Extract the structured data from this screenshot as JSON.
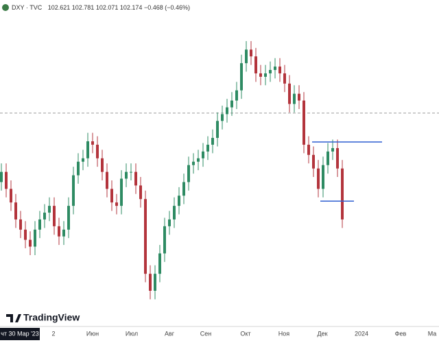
{
  "chart_data": {
    "type": "candlestick",
    "symbol": "DXY",
    "separator": "·",
    "source": "TVC",
    "open": 102.621,
    "high": 102.781,
    "low": 102.071,
    "close": 102.174,
    "change": "−0.468",
    "change_pct": "(−0.46%)",
    "brand": "TradingView",
    "up_color": "#2e8b63",
    "down_color": "#b3343c",
    "ylim": [
      98.87,
      108.36
    ],
    "levels": [
      {
        "value": 104.18,
        "color": "#2f5fd0"
      },
      {
        "value": 102.44,
        "color": "#2f5fd0"
      }
    ],
    "crosshair_price": 105.03,
    "crosshair_date": "чт 30 Мар '23",
    "x_labels": [
      "2",
      "Июн",
      "Июл",
      "Авг",
      "Сен",
      "Окт",
      "Ноя",
      "Дек",
      "2024",
      "Фев",
      "Ма"
    ],
    "candles": [
      [
        103.0,
        103.55,
        102.75,
        103.3
      ],
      [
        103.3,
        103.55,
        102.55,
        102.8
      ],
      [
        102.8,
        103.05,
        102.15,
        102.4
      ],
      [
        102.4,
        102.65,
        101.65,
        101.9
      ],
      [
        101.9,
        102.15,
        101.35,
        101.6
      ],
      [
        101.6,
        101.85,
        101.05,
        101.3
      ],
      [
        101.3,
        101.55,
        100.85,
        101.1
      ],
      [
        101.1,
        101.85,
        100.85,
        101.6
      ],
      [
        101.6,
        102.15,
        101.35,
        101.9
      ],
      [
        101.9,
        102.35,
        101.65,
        102.1
      ],
      [
        102.1,
        102.55,
        101.85,
        102.3
      ],
      [
        102.3,
        102.55,
        101.45,
        101.7
      ],
      [
        101.7,
        101.95,
        101.15,
        101.4
      ],
      [
        101.4,
        101.85,
        101.15,
        101.6
      ],
      [
        101.6,
        102.55,
        101.35,
        102.3
      ],
      [
        102.3,
        103.45,
        102.05,
        103.2
      ],
      [
        103.2,
        103.85,
        102.95,
        103.6
      ],
      [
        103.6,
        103.95,
        103.35,
        103.7
      ],
      [
        103.7,
        104.45,
        103.45,
        104.2
      ],
      [
        104.2,
        104.45,
        103.85,
        104.1
      ],
      [
        104.1,
        104.35,
        103.45,
        103.7
      ],
      [
        103.7,
        103.95,
        103.05,
        103.3
      ],
      [
        103.3,
        103.55,
        102.55,
        102.8
      ],
      [
        102.8,
        103.05,
        102.15,
        102.4
      ],
      [
        102.4,
        102.65,
        102.05,
        102.3
      ],
      [
        102.3,
        103.35,
        102.05,
        103.1
      ],
      [
        103.1,
        103.55,
        102.85,
        103.3
      ],
      [
        103.3,
        103.55,
        103.05,
        103.3
      ],
      [
        103.3,
        103.55,
        102.65,
        102.9
      ],
      [
        102.9,
        103.15,
        102.25,
        102.5
      ],
      [
        102.5,
        102.75,
        100.05,
        100.3
      ],
      [
        100.3,
        100.55,
        99.55,
        99.8
      ],
      [
        99.8,
        100.55,
        99.55,
        100.3
      ],
      [
        100.3,
        101.15,
        100.05,
        100.9
      ],
      [
        100.9,
        101.95,
        100.65,
        101.7
      ],
      [
        101.7,
        102.15,
        101.45,
        101.9
      ],
      [
        101.9,
        102.55,
        101.65,
        102.3
      ],
      [
        102.3,
        102.85,
        102.05,
        102.6
      ],
      [
        102.6,
        103.25,
        102.35,
        103.0
      ],
      [
        103.0,
        103.75,
        102.75,
        103.5
      ],
      [
        103.5,
        103.85,
        103.25,
        103.6
      ],
      [
        103.6,
        103.95,
        103.35,
        103.7
      ],
      [
        103.7,
        104.15,
        103.45,
        103.9
      ],
      [
        103.9,
        104.35,
        103.65,
        104.1
      ],
      [
        104.1,
        104.55,
        103.85,
        104.3
      ],
      [
        104.3,
        105.05,
        104.05,
        104.8
      ],
      [
        104.8,
        105.25,
        104.55,
        105.0
      ],
      [
        105.0,
        105.45,
        104.75,
        105.2
      ],
      [
        105.2,
        105.65,
        104.95,
        105.4
      ],
      [
        105.4,
        105.95,
        105.15,
        105.7
      ],
      [
        105.7,
        106.75,
        105.45,
        106.5
      ],
      [
        106.5,
        107.15,
        106.25,
        106.9
      ],
      [
        106.9,
        107.15,
        106.45,
        106.7
      ],
      [
        106.7,
        106.95,
        105.95,
        106.2
      ],
      [
        106.2,
        106.45,
        105.85,
        106.1
      ],
      [
        106.1,
        106.45,
        105.85,
        106.2
      ],
      [
        106.2,
        106.55,
        105.95,
        106.3
      ],
      [
        106.3,
        106.65,
        106.05,
        106.4
      ],
      [
        106.4,
        106.65,
        105.95,
        106.2
      ],
      [
        106.2,
        106.45,
        105.65,
        105.9
      ],
      [
        105.9,
        106.15,
        105.05,
        105.3
      ],
      [
        105.3,
        105.85,
        105.05,
        105.6
      ],
      [
        105.6,
        105.85,
        105.15,
        105.4
      ],
      [
        105.4,
        105.65,
        103.85,
        104.1
      ],
      [
        104.1,
        104.35,
        103.55,
        103.8
      ],
      [
        103.8,
        104.05,
        103.15,
        103.4
      ],
      [
        103.4,
        103.65,
        102.55,
        102.8
      ],
      [
        102.8,
        103.75,
        102.55,
        103.5
      ],
      [
        103.5,
        104.15,
        103.25,
        103.9
      ],
      [
        103.9,
        104.25,
        103.65,
        104.0
      ],
      [
        104.0,
        104.25,
        103.15,
        103.4
      ],
      [
        103.4,
        103.65,
        101.65,
        101.9
      ]
    ]
  }
}
